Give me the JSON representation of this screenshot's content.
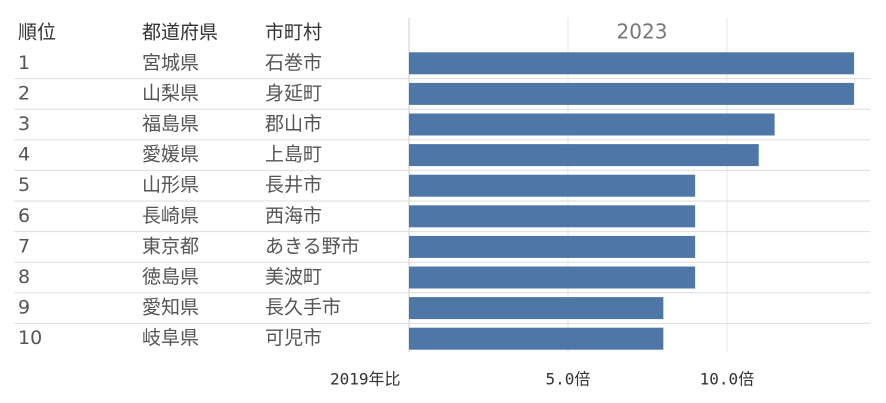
{
  "chart_data": {
    "type": "bar",
    "orientation": "horizontal",
    "title": "2023",
    "x_label": "2019年比",
    "columns": [
      "順位",
      "都道府県",
      "市町村"
    ],
    "rows": [
      [
        "1",
        "宮城県",
        "石巻市"
      ],
      [
        "2",
        "山梨県",
        "身延町"
      ],
      [
        "3",
        "福島県",
        "郡山市"
      ],
      [
        "4",
        "愛媛県",
        "上島町"
      ],
      [
        "5",
        "山形県",
        "長井市"
      ],
      [
        "6",
        "長崎県",
        "西海市"
      ],
      [
        "7",
        "東京都",
        "あきる野市"
      ],
      [
        "8",
        "徳島県",
        "美波町"
      ],
      [
        "9",
        "愛知県",
        "長久手市"
      ],
      [
        "10",
        "岐阜県",
        "可児市"
      ]
    ],
    "values": [
      14.0,
      14.0,
      11.5,
      11.0,
      9.0,
      9.0,
      9.0,
      9.0,
      8.0,
      8.0
    ],
    "color": "#4e77a8",
    "xlim": [
      0,
      14.5
    ],
    "xticks": [
      {
        "value": 5,
        "label": "5.0倍"
      },
      {
        "value": 10,
        "label": "10.0倍"
      }
    ],
    "grid": true
  }
}
